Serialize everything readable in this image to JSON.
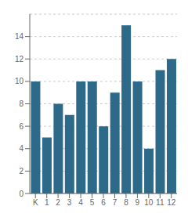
{
  "chart_data": {
    "type": "bar",
    "categories": [
      "K",
      "1",
      "2",
      "3",
      "4",
      "5",
      "6",
      "7",
      "8",
      "9",
      "10",
      "11",
      "12"
    ],
    "values": [
      10,
      5,
      8,
      7,
      10,
      10,
      6,
      9,
      15,
      10,
      4,
      11,
      12
    ],
    "color": "#2d6a8a",
    "ylim": [
      0,
      16
    ],
    "yticks": [
      0,
      2,
      4,
      6,
      8,
      10,
      12,
      14
    ],
    "grid": true
  }
}
